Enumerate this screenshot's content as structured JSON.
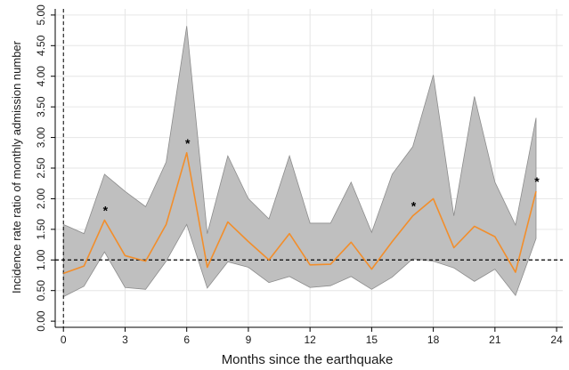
{
  "chart_data": {
    "type": "line",
    "xlabel": "Months since the earthquake",
    "ylabel": "Incidence rate ratio of monthly admission number",
    "xlim": [
      -0.4,
      24.3
    ],
    "ylim": [
      -0.1,
      5.1
    ],
    "x_ticks": [
      0,
      3,
      6,
      9,
      12,
      15,
      18,
      21,
      24
    ],
    "x_tick_labels": [
      "0",
      "3",
      "6",
      "9",
      "12",
      "15",
      "18",
      "21",
      "24"
    ],
    "y_ticks": [
      0,
      0.5,
      1,
      1.5,
      2,
      2.5,
      3,
      3.5,
      4,
      4.5,
      5
    ],
    "y_tick_labels": [
      "0.00",
      "0.50",
      "1.00",
      "1.50",
      "2.00",
      "2.50",
      "3.00",
      "3.50",
      "4.00",
      "4.50",
      "5.00"
    ],
    "grid": true,
    "reference_line_y": 1.0,
    "reference_line_x": 0,
    "x": [
      0,
      1,
      2,
      3,
      4,
      5,
      6,
      7,
      8,
      9,
      10,
      11,
      12,
      13,
      14,
      15,
      16,
      17,
      18,
      19,
      20,
      21,
      22,
      23
    ],
    "series": [
      {
        "values": [
          0.78,
          0.9,
          1.65,
          1.07,
          0.98,
          1.58,
          2.75,
          0.88,
          1.62,
          1.3,
          1.0,
          1.43,
          0.92,
          0.93,
          1.29,
          0.85,
          1.3,
          1.72,
          2.0,
          1.2,
          1.55,
          1.38,
          0.8,
          2.12
        ],
        "lower": [
          0.4,
          0.57,
          1.13,
          0.55,
          0.52,
          0.98,
          1.58,
          0.54,
          0.97,
          0.88,
          0.63,
          0.73,
          0.55,
          0.58,
          0.73,
          0.52,
          0.72,
          1.02,
          0.98,
          0.87,
          0.65,
          0.85,
          0.42,
          1.35
        ],
        "upper": [
          1.58,
          1.43,
          2.4,
          2.12,
          1.87,
          2.6,
          4.82,
          1.43,
          2.7,
          2.0,
          1.67,
          2.7,
          1.6,
          1.6,
          2.27,
          1.45,
          2.4,
          2.85,
          4.02,
          1.72,
          3.67,
          2.27,
          1.57,
          3.32
        ],
        "line_color": "#f28e2b",
        "band_color": "#bfbfbf",
        "band_edge_color": "#8c8c8c"
      }
    ],
    "significance_markers": [
      {
        "x": 2,
        "label": "*"
      },
      {
        "x": 6,
        "label": "*"
      },
      {
        "x": 17,
        "label": "*"
      },
      {
        "x": 23,
        "label": "*"
      }
    ]
  }
}
